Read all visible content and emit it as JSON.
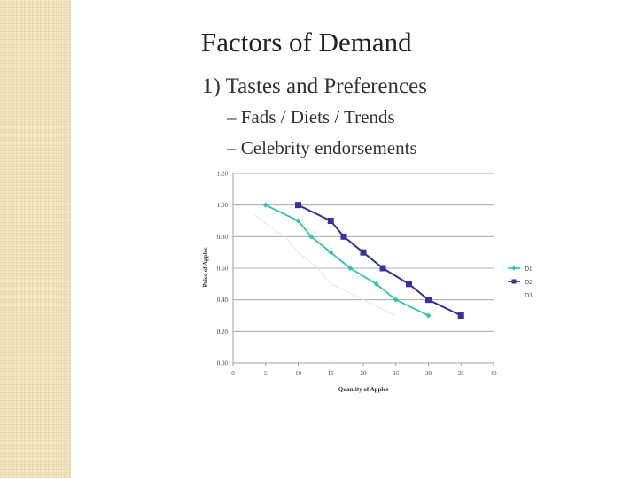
{
  "slide": {
    "title": "Factors of Demand",
    "bullet": "1) Tastes and Preferences",
    "subbullets": [
      "– Fads / Diets / Trends",
      "– Celebrity endorsements"
    ]
  },
  "chart_data": {
    "type": "line",
    "xlabel": "Quantity of Apples",
    "ylabel": "Price of Apples",
    "xlim": [
      0,
      40
    ],
    "ylim": [
      0,
      1.2
    ],
    "xticks": [
      "0",
      "5",
      "10",
      "15",
      "20",
      "25",
      "30",
      "35",
      "40"
    ],
    "yticks": [
      "0.00",
      "0.20",
      "0.40",
      "0.60",
      "0.80",
      "1.00",
      "1.20"
    ],
    "grid": "horizontal",
    "legend_position": "right",
    "series": [
      {
        "name": "D1",
        "color": "#2ec4a8",
        "marker": "diamond",
        "x": [
          5,
          10,
          12,
          15,
          18,
          22,
          25,
          30
        ],
        "y": [
          1.0,
          0.9,
          0.8,
          0.7,
          0.6,
          0.5,
          0.4,
          0.3
        ]
      },
      {
        "name": "D2",
        "color": "#33339a",
        "marker": "square",
        "x": [
          10,
          15,
          17,
          20,
          23,
          27,
          30,
          35
        ],
        "y": [
          1.0,
          0.9,
          0.8,
          0.7,
          0.6,
          0.5,
          0.4,
          0.3
        ]
      },
      {
        "name": "D3",
        "color": "#e6e6e6",
        "marker": "none",
        "x": [
          3,
          5,
          8,
          10,
          13,
          15,
          20,
          25
        ],
        "y": [
          0.95,
          0.88,
          0.8,
          0.7,
          0.6,
          0.5,
          0.4,
          0.3
        ]
      }
    ]
  }
}
